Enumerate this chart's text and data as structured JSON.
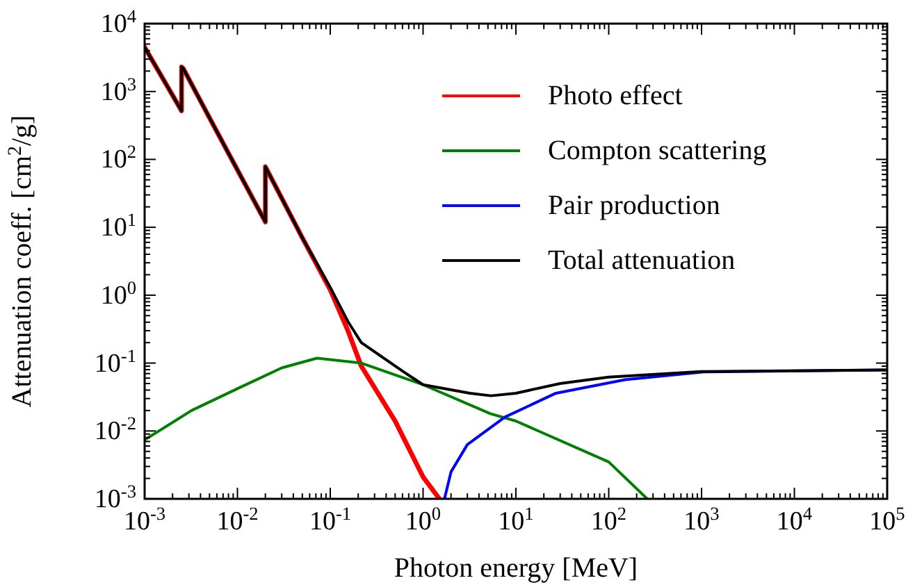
{
  "chart_data": {
    "type": "line",
    "xlabel": "Photon energy [MeV]",
    "ylabel": "Attenuation coeff. [cm$^{2}$/g]",
    "log": "xy",
    "grid": false,
    "legend": "top right",
    "line_style": "solid",
    "marker": "none",
    "xlim": [
      0.001,
      100000
    ],
    "ylim": [
      0.001,
      10000
    ],
    "xticks": [
      {
        "value": 0.001,
        "label": "10$^{-3}$"
      },
      {
        "value": 0.01,
        "label": "10$^{-2}$"
      },
      {
        "value": 0.1,
        "label": "10$^{-1}$"
      },
      {
        "value": 1,
        "label": "10$^{0}$"
      },
      {
        "value": 10,
        "label": "10$^{1}$"
      },
      {
        "value": 100,
        "label": "10$^{2}$"
      },
      {
        "value": 1000,
        "label": "10$^{3}$"
      },
      {
        "value": 10000,
        "label": "10$^{4}$"
      },
      {
        "value": 100000,
        "label": "10$^{5}$"
      }
    ],
    "yticks": [
      {
        "value": 0.001,
        "label": "10$^{-3}$"
      },
      {
        "value": 0.01,
        "label": "10$^{-2}$"
      },
      {
        "value": 0.1,
        "label": "10$^{-1}$"
      },
      {
        "value": 1,
        "label": "10$^{0}$"
      },
      {
        "value": 10,
        "label": "10$^{1}$"
      },
      {
        "value": 100,
        "label": "10$^{2}$"
      },
      {
        "value": 1000,
        "label": "10$^{3}$"
      },
      {
        "value": 10000,
        "label": "10$^{4}$"
      }
    ],
    "series": [
      {
        "name": "Photo effect",
        "color": "#ff0000",
        "x": [
          0.001,
          0.0025,
          0.0025,
          0.0026,
          0.005,
          0.01,
          0.02,
          0.02,
          0.05,
          0.1,
          0.155,
          0.216,
          0.5,
          1,
          1.5
        ],
        "values": [
          4500,
          520,
          2300,
          2200,
          410,
          70,
          12,
          78,
          7,
          1.2,
          0.3,
          0.09,
          0.014,
          0.0021,
          0.001
        ]
      },
      {
        "name": "Compton scattering",
        "color": "#008000",
        "x": [
          0.001,
          0.0032,
          0.01,
          0.03,
          0.072,
          0.216,
          1,
          5.3,
          10,
          100,
          260
        ],
        "values": [
          0.0074,
          0.02,
          0.042,
          0.085,
          0.118,
          0.1,
          0.048,
          0.018,
          0.014,
          0.0035,
          0.001
        ]
      },
      {
        "name": "Pair production",
        "color": "#0000ff",
        "x": [
          1.7,
          2.0,
          3.0,
          7.6,
          27,
          150,
          1070,
          100000
        ],
        "values": [
          0.001,
          0.0025,
          0.0063,
          0.016,
          0.036,
          0.057,
          0.074,
          0.079
        ]
      },
      {
        "name": "Total attenuation",
        "color": "#000000",
        "x": [
          0.001,
          0.0025,
          0.0025,
          0.0026,
          0.005,
          0.01,
          0.02,
          0.02,
          0.05,
          0.1,
          0.155,
          0.216,
          0.62,
          1,
          3.2,
          5.4,
          10,
          30,
          100,
          1000,
          100000
        ],
        "values": [
          4500,
          520,
          2300,
          2200,
          410,
          70,
          12,
          78,
          7,
          1.3,
          0.41,
          0.2,
          0.074,
          0.048,
          0.036,
          0.033,
          0.036,
          0.05,
          0.062,
          0.075,
          0.079
        ]
      }
    ]
  }
}
